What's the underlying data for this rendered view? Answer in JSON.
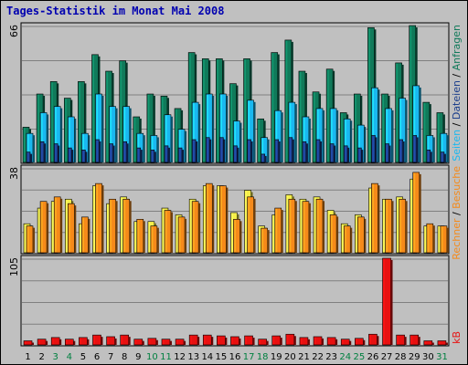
{
  "title": "Tages-Statistik im Monat Mai 2008",
  "colors": {
    "background": "#c0c0c0",
    "panel": "#c0c0c0",
    "grid": "#808080",
    "title": "#0000b0",
    "anfragen": "#107a5a",
    "dateien": "#1ab8f0",
    "seiten": "#1c3f8c",
    "besuche": "#f5ee4a",
    "rechner": "#f58a1a",
    "kb": "#e81010",
    "weekday_label": "#000000",
    "weekend_label": "#008040"
  },
  "legend": {
    "anfragen": "Anfragen",
    "dateien": "Dateien",
    "seiten": "Seiten",
    "besuche": "Besuche",
    "rechner": "Rechner",
    "kb": "kB",
    "sep": "/"
  },
  "chart_data": [
    {
      "type": "bar",
      "panel": "requests",
      "ymax_label": "66",
      "ylim": [
        0,
        66
      ],
      "categories": [
        "1",
        "2",
        "3",
        "4",
        "5",
        "6",
        "7",
        "8",
        "9",
        "10",
        "11",
        "12",
        "13",
        "14",
        "15",
        "16",
        "17",
        "18",
        "19",
        "20",
        "21",
        "22",
        "23",
        "24",
        "25",
        "26",
        "27",
        "28",
        "29",
        "30",
        "31"
      ],
      "series": [
        {
          "name": "Anfragen",
          "values": [
            17,
            33,
            39,
            31,
            39,
            52,
            44,
            49,
            22,
            33,
            32,
            26,
            53,
            50,
            50,
            38,
            50,
            21,
            53,
            59,
            44,
            34,
            45,
            24,
            33,
            65,
            33,
            48,
            66,
            29,
            24
          ]
        },
        {
          "name": "Dateien",
          "values": [
            14,
            24,
            27,
            22,
            14,
            33,
            27,
            27,
            14,
            13,
            23,
            16,
            29,
            33,
            33,
            20,
            30,
            12,
            25,
            29,
            22,
            26,
            26,
            21,
            18,
            36,
            26,
            31,
            37,
            13,
            14
          ]
        },
        {
          "name": "Seiten",
          "values": [
            5,
            10,
            9,
            7,
            6,
            11,
            9,
            10,
            7,
            6,
            8,
            7,
            11,
            12,
            12,
            8,
            11,
            4,
            11,
            12,
            10,
            11,
            9,
            8,
            7,
            13,
            9,
            11,
            13,
            6,
            5
          ]
        }
      ]
    },
    {
      "type": "bar",
      "panel": "visits",
      "ymax_label": "38",
      "ylim": [
        0,
        38
      ],
      "categories": [
        "1",
        "2",
        "3",
        "4",
        "5",
        "6",
        "7",
        "8",
        "9",
        "10",
        "11",
        "12",
        "13",
        "14",
        "15",
        "16",
        "17",
        "18",
        "19",
        "20",
        "21",
        "22",
        "23",
        "24",
        "25",
        "26",
        "27",
        "28",
        "29",
        "30",
        "31"
      ],
      "series": [
        {
          "name": "Besuche",
          "values": [
            13,
            20,
            23,
            24,
            13,
            30,
            22,
            25,
            14,
            14,
            20,
            17,
            24,
            30,
            30,
            18,
            28,
            12,
            17,
            26,
            24,
            25,
            19,
            13,
            17,
            29,
            24,
            25,
            33,
            12,
            12
          ]
        },
        {
          "name": "Rechner",
          "values": [
            12,
            23,
            25,
            22,
            16,
            31,
            24,
            24,
            15,
            12,
            19,
            16,
            23,
            31,
            30,
            15,
            25,
            11,
            20,
            24,
            23,
            24,
            17,
            12,
            16,
            31,
            24,
            24,
            36,
            13,
            12
          ]
        }
      ]
    },
    {
      "type": "bar",
      "panel": "traffic",
      "ymax_label": "105",
      "ylim": [
        0,
        105
      ],
      "categories": [
        "1",
        "2",
        "3",
        "4",
        "5",
        "6",
        "7",
        "8",
        "9",
        "10",
        "11",
        "12",
        "13",
        "14",
        "15",
        "16",
        "17",
        "18",
        "19",
        "20",
        "21",
        "22",
        "23",
        "24",
        "25",
        "26",
        "27",
        "28",
        "29",
        "30",
        "31"
      ],
      "series": [
        {
          "name": "kB",
          "values": [
            5,
            7,
            9,
            7,
            9,
            12,
            10,
            12,
            7,
            8,
            7,
            7,
            12,
            12,
            11,
            10,
            11,
            7,
            11,
            13,
            9,
            10,
            9,
            7,
            8,
            13,
            105,
            12,
            12,
            5,
            5
          ]
        }
      ]
    }
  ],
  "x_labels": {
    "days": [
      "1",
      "2",
      "3",
      "4",
      "5",
      "6",
      "7",
      "8",
      "9",
      "10",
      "11",
      "12",
      "13",
      "14",
      "15",
      "16",
      "17",
      "18",
      "19",
      "20",
      "21",
      "22",
      "23",
      "24",
      "25",
      "26",
      "27",
      "28",
      "29",
      "30",
      "31"
    ],
    "weekend": [
      3,
      4,
      10,
      11,
      17,
      18,
      24,
      25,
      31
    ]
  }
}
